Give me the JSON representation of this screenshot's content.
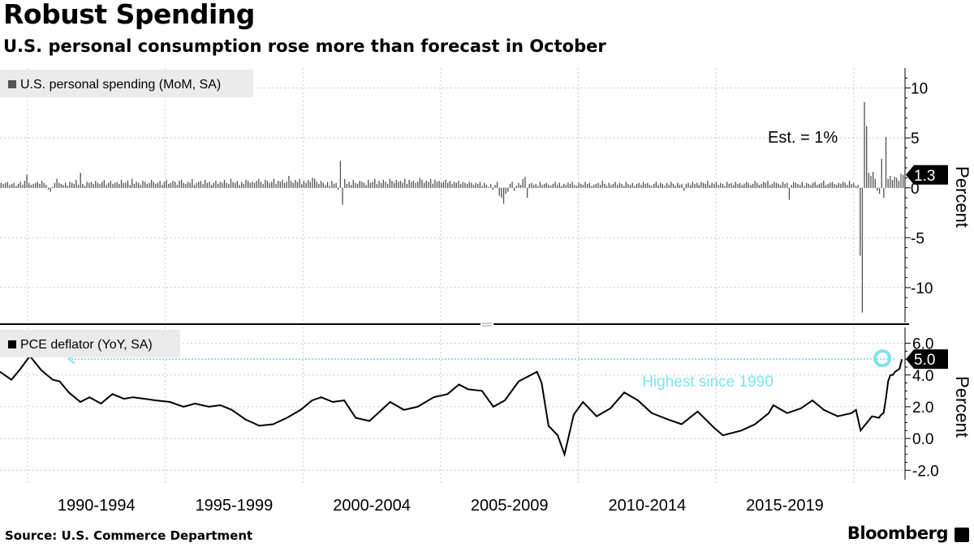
{
  "title": "Robust Spending",
  "subtitle": "U.S. personal consumption rose more than forecast in October",
  "source": "Source: U.S. Commerce Department",
  "brand": "Bloomberg",
  "colors": {
    "bars": "#555555",
    "line": "#000000",
    "highlight": "#7fe3f0",
    "grid": "#cccccc",
    "legend_bg": "#ebebeb"
  },
  "chart_data": [
    {
      "type": "bar",
      "legend": "U.S. personal spending (MoM, SA)",
      "ylabel": "Percent",
      "yticks": [
        10,
        5,
        0,
        -5,
        -10
      ],
      "ytick_labels": [
        "10",
        "5",
        "0",
        "-5",
        "-10"
      ],
      "ylim": [
        -13.5,
        12
      ],
      "x_start": "1989-01",
      "x_end": "2021-10",
      "last_value": 1.3,
      "last_value_label": "1.3",
      "annotation": "Est. = 1%",
      "approximate_series": true,
      "series_monthly": [
        0.5,
        0.4,
        0.5,
        0.6,
        0.3,
        0.4,
        0.5,
        0.2,
        0.4,
        0.6,
        0.3,
        0.7,
        1.3,
        0.5,
        0.3,
        0.4,
        0.5,
        0.6,
        0.4,
        0.7,
        0.5,
        0.3,
        -0.2,
        -0.4,
        0.1,
        0.5,
        0.9,
        0.5,
        0.4,
        0.3,
        0.5,
        0.2,
        0.6,
        0.5,
        0.4,
        0.8,
        0.3,
        1.5,
        0.4,
        0.2,
        0.6,
        0.5,
        0.6,
        0.4,
        0.7,
        0.5,
        0.4,
        0.6,
        0.8,
        0.3,
        0.5,
        0.7,
        0.4,
        0.5,
        0.6,
        0.4,
        0.8,
        0.5,
        0.5,
        0.7,
        0.3,
        0.9,
        0.4,
        0.6,
        0.5,
        0.3,
        0.7,
        0.6,
        0.4,
        0.5,
        0.8,
        0.6,
        0.4,
        0.5,
        0.7,
        0.3,
        0.6,
        0.8,
        0.4,
        0.5,
        0.7,
        0.6,
        0.3,
        0.7,
        0.8,
        0.5,
        0.4,
        0.6,
        0.5,
        0.9,
        0.3,
        0.5,
        0.6,
        0.7,
        0.4,
        0.8,
        0.5,
        0.6,
        0.3,
        0.5,
        0.7,
        0.4,
        0.6,
        0.5,
        0.8,
        0.5,
        0.4,
        0.9,
        0.6,
        0.5,
        0.7,
        0.3,
        0.6,
        0.4,
        0.8,
        0.7,
        0.5,
        0.6,
        0.5,
        0.7,
        0.9,
        0.6,
        0.4,
        0.8,
        0.7,
        0.5,
        0.6,
        0.9,
        0.4,
        0.7,
        0.6,
        0.8,
        0.5,
        0.6,
        1.2,
        0.7,
        0.5,
        0.8,
        0.6,
        0.9,
        0.4,
        0.7,
        0.5,
        0.8,
        0.6,
        1.0,
        0.9,
        0.6,
        0.4,
        0.7,
        0.5,
        0.3,
        0.6,
        0.2,
        0.7,
        0.4,
        0.5,
        -0.2,
        2.7,
        -1.7,
        0.9,
        0.4,
        0.6,
        0.3,
        0.8,
        0.5,
        0.4,
        0.7,
        0.6,
        0.5,
        0.3,
        0.8,
        0.5,
        0.6,
        0.9,
        0.4,
        0.7,
        0.5,
        0.8,
        0.6,
        0.4,
        0.9,
        0.7,
        0.5,
        0.8,
        0.6,
        0.7,
        0.5,
        0.9,
        0.4,
        0.8,
        0.6,
        0.7,
        0.5,
        0.6,
        1.0,
        0.8,
        0.5,
        0.7,
        0.6,
        0.9,
        0.4,
        0.8,
        0.6,
        0.7,
        0.5,
        0.6,
        0.8,
        0.5,
        0.7,
        0.4,
        0.6,
        0.5,
        0.7,
        0.4,
        0.6,
        0.5,
        0.4,
        0.6,
        0.5,
        0.3,
        0.5,
        0.4,
        0.6,
        0.2,
        0.5,
        0.3,
        0.1,
        0.4,
        -0.2,
        0.3,
        0.6,
        -0.8,
        -1.0,
        -1.6,
        -0.6,
        -0.4,
        0.4,
        0.6,
        -0.3,
        0.2,
        0.5,
        0.3,
        0.9,
        1.1,
        -1.0,
        0.4,
        0.5,
        0.3,
        0.4,
        0.2,
        0.6,
        0.3,
        0.4,
        0.5,
        0.3,
        0.2,
        0.4,
        0.6,
        0.3,
        0.5,
        0.2,
        0.4,
        0.3,
        0.5,
        0.4,
        0.6,
        0.3,
        0.2,
        0.5,
        0.4,
        0.3,
        0.6,
        0.4,
        0.5,
        0.2,
        0.3,
        0.4,
        0.5,
        0.3,
        0.7,
        0.4,
        0.2,
        0.5,
        0.3,
        0.4,
        0.6,
        0.3,
        0.5,
        0.4,
        0.2,
        0.6,
        0.4,
        0.3,
        0.5,
        0.2,
        0.4,
        0.5,
        0.3,
        0.6,
        0.4,
        0.5,
        0.3,
        0.2,
        0.4,
        0.6,
        0.3,
        0.5,
        0.4,
        0.2,
        0.5,
        0.3,
        0.6,
        0.4,
        0.2,
        0.5,
        0.3,
        0.4,
        -0.3,
        0.4,
        0.5,
        0.3,
        0.6,
        0.4,
        0.5,
        0.3,
        0.6,
        0.5,
        0.4,
        0.7,
        0.3,
        0.5,
        0.4,
        0.6,
        0.3,
        0.5,
        0.4,
        0.2,
        0.6,
        0.4,
        0.5,
        0.3,
        0.6,
        0.4,
        0.5,
        0.3,
        0.4,
        0.6,
        0.5,
        0.3,
        0.4,
        0.7,
        0.5,
        0.3,
        0.4,
        0.6,
        0.5,
        0.7,
        0.3,
        0.4,
        0.6,
        0.5,
        0.4,
        0.3,
        0.6,
        0.4,
        0.5,
        -1.2,
        0.3,
        0.6,
        0.5,
        0.4,
        0.3,
        0.6,
        0.2,
        0.5,
        0.4,
        0.3,
        0.5,
        0.6,
        0.3,
        0.4,
        0.5,
        0.7,
        0.3,
        0.4,
        0.5,
        0.6,
        0.4,
        0.3,
        0.5,
        0.4,
        0.6,
        0.5,
        0.3,
        0.7,
        0.4,
        0.5,
        0.2,
        0.3,
        -6.8,
        -12.5,
        8.6,
        6.2,
        1.5,
        1.2,
        1.6,
        0.9,
        -0.3,
        -0.6,
        2.9,
        -1.0,
        5.1,
        0.9,
        1.2,
        0.8,
        1.1,
        1.0,
        0.7,
        1.4,
        1.3
      ]
    },
    {
      "type": "line",
      "legend": "PCE deflator (YoY, SA)",
      "ylabel": "Percent",
      "yticks": [
        6.0,
        4.0,
        2.0,
        0.0,
        -2.0
      ],
      "ytick_labels": [
        "6.0",
        "4.0",
        "2.0",
        "0.0",
        "-2.0"
      ],
      "ylim": [
        -2.6,
        7.0
      ],
      "x_start": "1989-01",
      "x_end": "2021-10",
      "last_value": 5.0,
      "last_value_label": "5.0",
      "reference_line": 5.0,
      "annotation": "Highest since 1990",
      "approximate_series": true,
      "points": [
        [
          "1989-01",
          4.2
        ],
        [
          "1989-06",
          3.7
        ],
        [
          "1989-10",
          4.4
        ],
        [
          "1990-02",
          5.2
        ],
        [
          "1990-07",
          4.3
        ],
        [
          "1990-12",
          3.7
        ],
        [
          "1991-03",
          3.6
        ],
        [
          "1991-07",
          2.9
        ],
        [
          "1991-12",
          2.3
        ],
        [
          "1992-04",
          2.6
        ],
        [
          "1992-09",
          2.2
        ],
        [
          "1993-02",
          2.8
        ],
        [
          "1993-07",
          2.5
        ],
        [
          "1993-11",
          2.6
        ],
        [
          "1994-04",
          2.5
        ],
        [
          "1994-09",
          2.4
        ],
        [
          "1995-03",
          2.3
        ],
        [
          "1995-09",
          2.0
        ],
        [
          "1996-02",
          2.2
        ],
        [
          "1996-08",
          2.0
        ],
        [
          "1997-01",
          2.1
        ],
        [
          "1997-06",
          1.8
        ],
        [
          "1997-12",
          1.2
        ],
        [
          "1998-06",
          0.8
        ],
        [
          "1998-12",
          0.9
        ],
        [
          "1999-06",
          1.3
        ],
        [
          "1999-12",
          1.8
        ],
        [
          "2000-05",
          2.4
        ],
        [
          "2000-09",
          2.6
        ],
        [
          "2001-02",
          2.3
        ],
        [
          "2001-07",
          2.4
        ],
        [
          "2001-12",
          1.3
        ],
        [
          "2002-06",
          1.1
        ],
        [
          "2002-12",
          1.9
        ],
        [
          "2003-03",
          2.3
        ],
        [
          "2003-09",
          1.8
        ],
        [
          "2004-03",
          2.0
        ],
        [
          "2004-10",
          2.6
        ],
        [
          "2005-04",
          2.8
        ],
        [
          "2005-09",
          3.4
        ],
        [
          "2006-01",
          3.1
        ],
        [
          "2006-07",
          3.0
        ],
        [
          "2006-12",
          2.0
        ],
        [
          "2007-05",
          2.4
        ],
        [
          "2007-11",
          3.6
        ],
        [
          "2008-07",
          4.2
        ],
        [
          "2008-09",
          3.5
        ],
        [
          "2008-12",
          0.8
        ],
        [
          "2009-04",
          0.2
        ],
        [
          "2009-07",
          -1.0
        ],
        [
          "2009-11",
          1.5
        ],
        [
          "2010-03",
          2.3
        ],
        [
          "2010-09",
          1.4
        ],
        [
          "2011-03",
          1.9
        ],
        [
          "2011-09",
          2.9
        ],
        [
          "2012-03",
          2.4
        ],
        [
          "2012-09",
          1.6
        ],
        [
          "2013-04",
          1.2
        ],
        [
          "2013-10",
          0.9
        ],
        [
          "2014-05",
          1.7
        ],
        [
          "2014-12",
          0.7
        ],
        [
          "2015-04",
          0.2
        ],
        [
          "2015-12",
          0.5
        ],
        [
          "2016-06",
          0.9
        ],
        [
          "2016-12",
          1.6
        ],
        [
          "2017-02",
          2.1
        ],
        [
          "2017-08",
          1.6
        ],
        [
          "2018-02",
          1.9
        ],
        [
          "2018-07",
          2.4
        ],
        [
          "2018-12",
          1.8
        ],
        [
          "2019-06",
          1.4
        ],
        [
          "2019-12",
          1.6
        ],
        [
          "2020-02",
          1.8
        ],
        [
          "2020-04",
          0.5
        ],
        [
          "2020-09",
          1.4
        ],
        [
          "2020-12",
          1.3
        ],
        [
          "2021-01",
          1.5
        ],
        [
          "2021-02",
          1.6
        ],
        [
          "2021-03",
          2.5
        ],
        [
          "2021-04",
          3.6
        ],
        [
          "2021-05",
          4.0
        ],
        [
          "2021-06",
          4.0
        ],
        [
          "2021-07",
          4.2
        ],
        [
          "2021-08",
          4.3
        ],
        [
          "2021-09",
          4.4
        ],
        [
          "2021-10",
          5.0
        ]
      ]
    }
  ],
  "x_axis": {
    "labels": [
      "1990-1994",
      "1995-1999",
      "2000-2004",
      "2005-2009",
      "2010-2014",
      "2015-2019"
    ],
    "label_starts": [
      "1990",
      "1995",
      "2000",
      "2005",
      "2010",
      "2015"
    ]
  }
}
